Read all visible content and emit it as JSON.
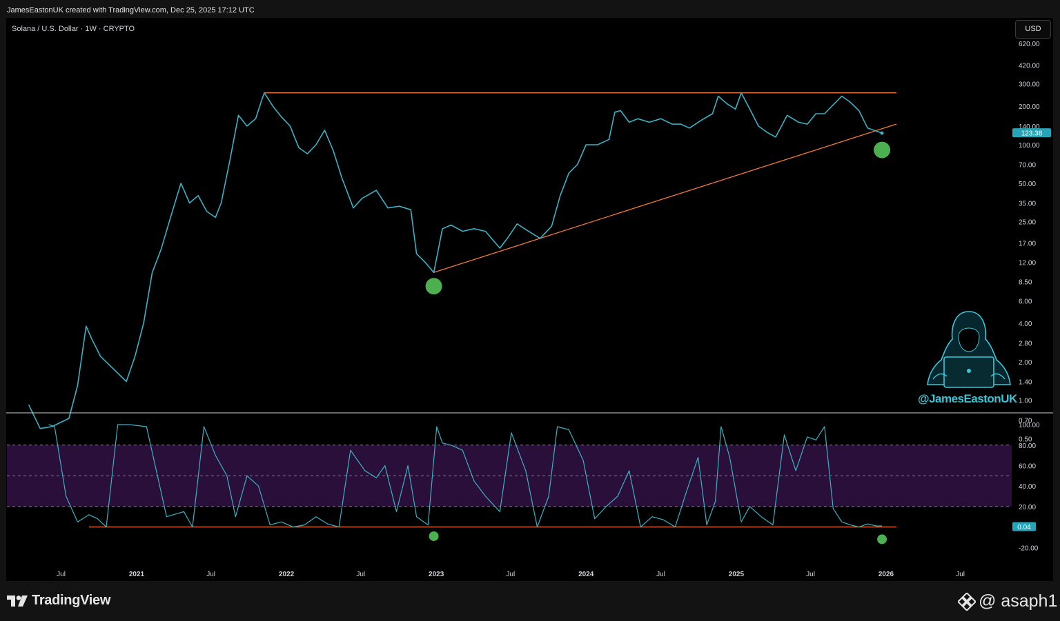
{
  "header": {
    "created_by": "JamesEastonUK created with TradingView.com, Dec 25, 2025 17:12 UTC",
    "symbol": "Solana / U.S. Dollar · 1W · CRYPTO",
    "currency": "USD"
  },
  "branding": {
    "tv_logo_text": "TradingView",
    "watermark_handle": "@JamesEastonUK",
    "asaph_text": "@ asaph1"
  },
  "colors": {
    "price_line": "#3ab3c3",
    "trendline": "#f07a3c",
    "marker": "#4caf50",
    "oscillator_band": "#2a0f3a",
    "background": "#000000"
  },
  "chart_data": [
    {
      "type": "line",
      "series": [
        {
          "name": "",
          "color": "#3ab3c3",
          "x": [
            "2020-04-13",
            "2020-05-11",
            "2020-06-08",
            "2020-07-20",
            "2020-08-10",
            "2020-08-31",
            "2020-09-14",
            "2020-10-05",
            "2020-11-02",
            "2020-12-07",
            "2020-12-28",
            "2021-01-18",
            "2021-02-08",
            "2021-03-01",
            "2021-03-29",
            "2021-04-19",
            "2021-05-10",
            "2021-05-31",
            "2021-06-21",
            "2021-07-12",
            "2021-07-26",
            "2021-08-16",
            "2021-09-06",
            "2021-09-27",
            "2021-10-18",
            "2021-11-01",
            "2021-11-08",
            "2021-11-29",
            "2021-12-20",
            "2022-01-10",
            "2022-01-31",
            "2022-02-21",
            "2022-03-14",
            "2022-04-04",
            "2022-04-25",
            "2022-05-16",
            "2022-06-13",
            "2022-07-04",
            "2022-08-08",
            "2022-09-05",
            "2022-10-03",
            "2022-10-31",
            "2022-11-14",
            "2022-12-05",
            "2022-12-26",
            "2023-01-16",
            "2023-02-06",
            "2023-03-06",
            "2023-04-03",
            "2023-05-01",
            "2023-06-05",
            "2023-06-26",
            "2023-07-17",
            "2023-08-14",
            "2023-09-11",
            "2023-10-09",
            "2023-10-30",
            "2023-11-20",
            "2023-12-11",
            "2024-01-01",
            "2024-01-29",
            "2024-02-26",
            "2024-03-11",
            "2024-03-25",
            "2024-04-15",
            "2024-05-06",
            "2024-06-03",
            "2024-07-01",
            "2024-07-29",
            "2024-08-19",
            "2024-09-09",
            "2024-10-07",
            "2024-11-04",
            "2024-11-18",
            "2024-12-09",
            "2024-12-30",
            "2025-01-13",
            "2025-02-03",
            "2025-02-24",
            "2025-03-17",
            "2025-04-07",
            "2025-05-05",
            "2025-06-02",
            "2025-06-23",
            "2025-07-14",
            "2025-08-04",
            "2025-08-25",
            "2025-09-15",
            "2025-10-06",
            "2025-10-27",
            "2025-11-17",
            "2025-12-22"
          ],
          "values": [
            0.92,
            0.6,
            0.62,
            0.72,
            1.3,
            3.8,
            3.0,
            2.2,
            1.8,
            1.4,
            2.2,
            4.0,
            10.0,
            15.0,
            30.0,
            50.0,
            35.0,
            40.0,
            30.0,
            27.0,
            35.0,
            75.0,
            170.0,
            140.0,
            160.0,
            220.0,
            255.0,
            200.0,
            165.0,
            140.0,
            95.0,
            85.0,
            100.0,
            130.0,
            90.0,
            55.0,
            32.0,
            38.0,
            44.0,
            32.0,
            33.0,
            31.0,
            14.0,
            12.0,
            10.0,
            22.0,
            23.5,
            21.0,
            22.0,
            21.0,
            15.5,
            19.0,
            24.0,
            21.0,
            18.5,
            23.0,
            40.0,
            60.0,
            70.0,
            100.0,
            100.0,
            110.0,
            180.0,
            185.0,
            150.0,
            160.0,
            150.0,
            160.0,
            145.0,
            145.0,
            135.0,
            155.0,
            175.0,
            240.0,
            210.0,
            190.0,
            255.0,
            190.0,
            140.0,
            125.0,
            115.0,
            170.0,
            150.0,
            145.0,
            175.0,
            175.0,
            205.0,
            240.0,
            215.0,
            185.0,
            135.0,
            123.38
          ]
        }
      ],
      "yscale": "log",
      "yticks": [
        "620.00",
        "420.00",
        "300.00",
        "200.00",
        "140.00",
        "100.00",
        "70.00",
        "50.00",
        "35.00",
        "25.00",
        "17.00",
        "12.00",
        "8.50",
        "6.00",
        "4.00",
        "2.80",
        "2.00",
        "1.40",
        "1.00",
        "0.70",
        "0.50"
      ],
      "last_value": "123.38",
      "trendlines": [
        {
          "x": [
            "2021-11-08",
            "2026-01-26"
          ],
          "y": [
            255,
            255
          ]
        },
        {
          "x": [
            "2022-12-26",
            "2026-01-26"
          ],
          "y": [
            10,
            145
          ]
        }
      ],
      "markers": [
        {
          "x": "2022-12-26",
          "y": 7.8
        },
        {
          "x": "2025-12-22",
          "y": 91
        }
      ]
    },
    {
      "type": "line",
      "series": [
        {
          "name": "",
          "color": "#3ab3c3",
          "x": [
            "2020-06-01",
            "2020-06-15",
            "2020-07-13",
            "2020-08-10",
            "2020-09-07",
            "2020-09-28",
            "2020-10-19",
            "2020-11-16",
            "2020-12-14",
            "2021-01-04",
            "2021-01-25",
            "2021-03-15",
            "2021-04-26",
            "2021-05-17",
            "2021-06-14",
            "2021-07-12",
            "2021-08-09",
            "2021-08-30",
            "2021-09-27",
            "2021-10-25",
            "2021-11-22",
            "2021-12-20",
            "2022-01-17",
            "2022-02-14",
            "2022-03-14",
            "2022-04-11",
            "2022-05-09",
            "2022-06-06",
            "2022-07-11",
            "2022-08-08",
            "2022-08-29",
            "2022-09-26",
            "2022-10-24",
            "2022-11-14",
            "2022-12-12",
            "2023-01-02",
            "2023-01-16",
            "2023-02-06",
            "2023-03-06",
            "2023-04-03",
            "2023-05-01",
            "2023-06-05",
            "2023-07-03",
            "2023-08-07",
            "2023-09-04",
            "2023-10-02",
            "2023-10-23",
            "2023-11-20",
            "2023-12-25",
            "2024-01-22",
            "2024-02-19",
            "2024-03-18",
            "2024-04-15",
            "2024-05-13",
            "2024-06-10",
            "2024-07-08",
            "2024-08-05",
            "2024-09-02",
            "2024-09-30",
            "2024-10-21",
            "2024-11-11",
            "2024-11-25",
            "2024-12-16",
            "2025-01-13",
            "2025-02-03",
            "2025-03-03",
            "2025-03-31",
            "2025-04-28",
            "2025-05-26",
            "2025-06-23",
            "2025-07-14",
            "2025-08-04",
            "2025-08-25",
            "2025-09-15",
            "2025-10-06",
            "2025-10-27",
            "2025-11-17",
            "2025-12-08",
            "2025-12-22"
          ],
          "values": [
            100,
            98,
            30,
            5,
            12,
            8,
            0,
            100,
            100,
            99,
            98,
            10,
            15,
            0,
            98,
            70,
            50,
            10,
            50,
            40,
            2,
            5,
            0,
            2,
            10,
            3,
            0,
            75,
            55,
            48,
            60,
            15,
            60,
            10,
            2,
            98,
            82,
            80,
            75,
            45,
            30,
            15,
            92,
            55,
            0,
            30,
            98,
            95,
            65,
            8,
            20,
            30,
            55,
            0,
            10,
            7,
            0,
            35,
            68,
            2,
            25,
            98,
            68,
            5,
            20,
            10,
            2,
            90,
            55,
            88,
            85,
            98,
            18,
            5,
            2,
            0,
            3,
            1,
            1
          ]
        }
      ],
      "yticks": [
        "100.00",
        "80.00",
        "60.00",
        "40.00",
        "20.00",
        "0.04",
        "-20.00"
      ],
      "bands": [
        20,
        50,
        80
      ],
      "last_value": "0.04",
      "trendlines": [
        {
          "x": [
            "2020-09-07",
            "2026-01-26"
          ],
          "y": [
            0,
            0
          ]
        }
      ],
      "markers": [
        {
          "x": "2022-12-26",
          "y": -9
        },
        {
          "x": "2025-12-22",
          "y": -12
        }
      ]
    }
  ],
  "xaxis_labels": [
    {
      "text": "Jul",
      "date": "2020-07-01",
      "bold": false
    },
    {
      "text": "2021",
      "date": "2021-01-01",
      "bold": true
    },
    {
      "text": "Jul",
      "date": "2021-07-01",
      "bold": false
    },
    {
      "text": "2022",
      "date": "2022-01-01",
      "bold": true
    },
    {
      "text": "Jul",
      "date": "2022-07-01",
      "bold": false
    },
    {
      "text": "2023",
      "date": "2023-01-01",
      "bold": true
    },
    {
      "text": "Jul",
      "date": "2023-07-01",
      "bold": false
    },
    {
      "text": "2024",
      "date": "2024-01-01",
      "bold": true
    },
    {
      "text": "Jul",
      "date": "2024-07-01",
      "bold": false
    },
    {
      "text": "2025",
      "date": "2025-01-01",
      "bold": true
    },
    {
      "text": "Jul",
      "date": "2025-07-01",
      "bold": false
    },
    {
      "text": "2026",
      "date": "2026-01-01",
      "bold": true
    },
    {
      "text": "Jul",
      "date": "2026-07-01",
      "bold": false
    }
  ]
}
